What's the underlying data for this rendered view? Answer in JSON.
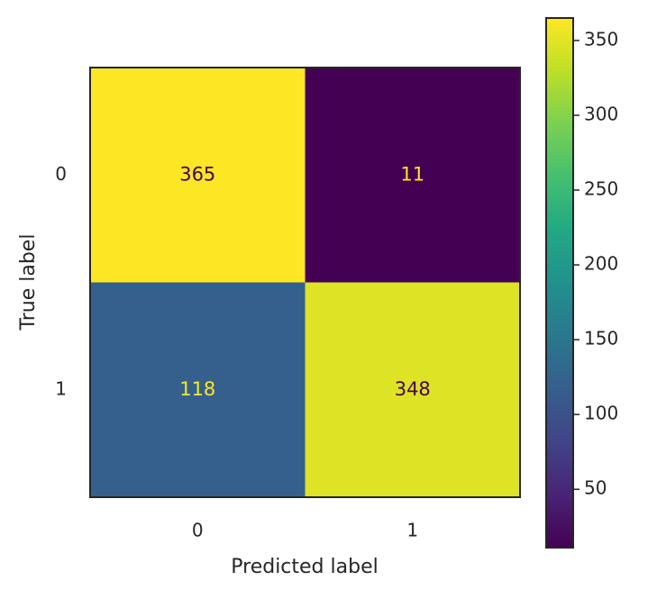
{
  "chart_data": {
    "type": "heatmap",
    "xlabel": "Predicted label",
    "ylabel": "True label",
    "x_categories": [
      "0",
      "1"
    ],
    "y_categories": [
      "0",
      "1"
    ],
    "values": [
      [
        365,
        11
      ],
      [
        118,
        348
      ]
    ],
    "colormap": "viridis",
    "clim": [
      11,
      365
    ],
    "cticks": [
      50,
      100,
      150,
      200,
      250,
      300,
      350
    ]
  }
}
